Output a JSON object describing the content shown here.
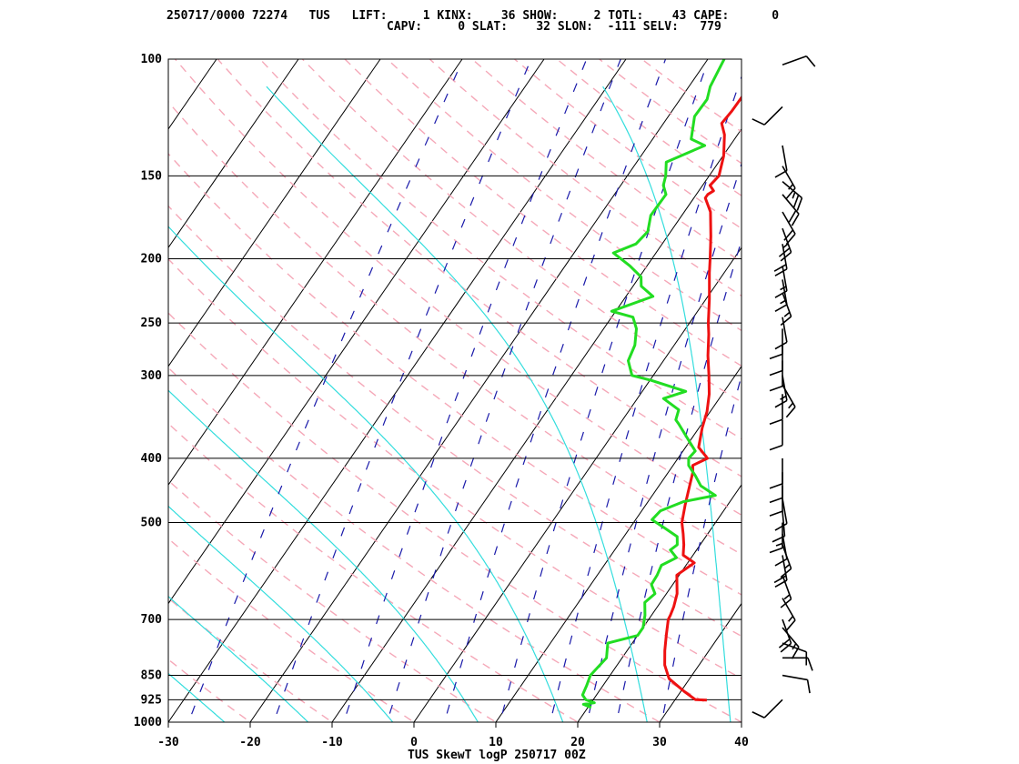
{
  "header": {
    "line1": "250717/0000 72274   TUS   LIFT:     1 KINX:    36 SHOW:     2 TOTL:    43 CAPE:      0",
    "line2": "CAPV:     0 SLAT:    32 SLON:  -111 SELV:   779"
  },
  "chart_data": {
    "type": "skewt",
    "title": "",
    "xlabel": "TUS SkewT logP 250717 00Z",
    "ylabel": "",
    "xlim": [
      -30,
      40
    ],
    "ylim": [
      1000,
      100
    ],
    "pressure_ticks": [
      {
        "p": 100,
        "label": "100"
      },
      {
        "p": 150,
        "label": "150"
      },
      {
        "p": 200,
        "label": "200"
      },
      {
        "p": 250,
        "label": "250"
      },
      {
        "p": 300,
        "label": "300"
      },
      {
        "p": 400,
        "label": "400"
      },
      {
        "p": 500,
        "label": "500"
      },
      {
        "p": 700,
        "label": "700"
      },
      {
        "p": 850,
        "label": "850"
      },
      {
        "p": 925,
        "label": "925"
      },
      {
        "p": 1000,
        "label": "1000"
      }
    ],
    "temp_ticks": [
      {
        "t": -30,
        "label": "-30"
      },
      {
        "t": -20,
        "label": "-20"
      },
      {
        "t": -10,
        "label": "-10"
      },
      {
        "t": 0,
        "label": "0"
      },
      {
        "t": 10,
        "label": "10"
      },
      {
        "t": 20,
        "label": "20"
      },
      {
        "t": 30,
        "label": "30"
      },
      {
        "t": 40,
        "label": "40"
      }
    ],
    "series": [
      {
        "color": "#ee1111",
        "points": [
          [
            926,
            33.9
          ],
          [
            925,
            32.5
          ],
          [
            900,
            30.5
          ],
          [
            860,
            27.5
          ],
          [
            820,
            25.8
          ],
          [
            780,
            24.6
          ],
          [
            740,
            23.5
          ],
          [
            700,
            22.4
          ],
          [
            690,
            22.3
          ],
          [
            670,
            22.0
          ],
          [
            640,
            21.3
          ],
          [
            600,
            19.7
          ],
          [
            575,
            20.8
          ],
          [
            560,
            18.8
          ],
          [
            540,
            18.0
          ],
          [
            520,
            17.0
          ],
          [
            500,
            15.9
          ],
          [
            470,
            14.8
          ],
          [
            450,
            14.1
          ],
          [
            420,
            13.0
          ],
          [
            410,
            12.4
          ],
          [
            400,
            13.6
          ],
          [
            385,
            11.6
          ],
          [
            360,
            10.4
          ],
          [
            340,
            9.6
          ],
          [
            320,
            8.4
          ],
          [
            300,
            6.8
          ],
          [
            280,
            5.0
          ],
          [
            260,
            3.3
          ],
          [
            250,
            2.3
          ],
          [
            230,
            0.4
          ],
          [
            210,
            -1.8
          ],
          [
            200,
            -2.9
          ],
          [
            185,
            -4.7
          ],
          [
            170,
            -6.8
          ],
          [
            162,
            -8.6
          ],
          [
            160,
            -8.6
          ],
          [
            158,
            -8.2
          ],
          [
            155,
            -9.1
          ],
          [
            150,
            -8.8
          ],
          [
            140,
            -9.9
          ],
          [
            130,
            -11.6
          ],
          [
            125,
            -12.9
          ],
          [
            120,
            -12.7
          ],
          [
            110,
            -12.6
          ],
          [
            100,
            -13.0
          ]
        ]
      },
      {
        "color": "#22dd22",
        "points": [
          [
            950,
            20.4
          ],
          [
            940,
            19.2
          ],
          [
            935,
            20.4
          ],
          [
            925,
            19.1
          ],
          [
            910,
            18.3
          ],
          [
            880,
            18.0
          ],
          [
            850,
            17.6
          ],
          [
            800,
            18.1
          ],
          [
            760,
            17.0
          ],
          [
            740,
            20.0
          ],
          [
            720,
            20.0
          ],
          [
            690,
            19.2
          ],
          [
            660,
            18.1
          ],
          [
            640,
            18.6
          ],
          [
            620,
            17.4
          ],
          [
            600,
            17.3
          ],
          [
            580,
            17.0
          ],
          [
            565,
            18.2
          ],
          [
            550,
            16.8
          ],
          [
            540,
            17.2
          ],
          [
            525,
            16.5
          ],
          [
            510,
            14.3
          ],
          [
            495,
            12.0
          ],
          [
            480,
            12.3
          ],
          [
            465,
            14.3
          ],
          [
            455,
            17.7
          ],
          [
            440,
            15.1
          ],
          [
            425,
            13.6
          ],
          [
            410,
            11.9
          ],
          [
            400,
            11.3
          ],
          [
            390,
            11.5
          ],
          [
            380,
            10.3
          ],
          [
            355,
            7.2
          ],
          [
            350,
            6.5
          ],
          [
            338,
            6.0
          ],
          [
            325,
            3.2
          ],
          [
            317,
            5.3
          ],
          [
            305,
            0.1
          ],
          [
            300,
            -2.6
          ],
          [
            285,
            -4.3
          ],
          [
            270,
            -4.8
          ],
          [
            255,
            -6.0
          ],
          [
            245,
            -7.4
          ],
          [
            240,
            -10.5
          ],
          [
            228,
            -6.7
          ],
          [
            220,
            -9.0
          ],
          [
            213,
            -9.8
          ],
          [
            205,
            -12.1
          ],
          [
            196,
            -15.2
          ],
          [
            190,
            -13.2
          ],
          [
            182,
            -12.8
          ],
          [
            172,
            -13.8
          ],
          [
            160,
            -13.7
          ],
          [
            155,
            -14.8
          ],
          [
            150,
            -15.3
          ],
          [
            143,
            -16.4
          ],
          [
            135,
            -13.1
          ],
          [
            132,
            -15.3
          ],
          [
            122,
            -16.8
          ],
          [
            115,
            -16.7
          ],
          [
            110,
            -17.4
          ],
          [
            100,
            -18.0
          ]
        ]
      }
    ],
    "wind_barbs": [
      {
        "p": 925,
        "dir": 225,
        "spd": 10
      },
      {
        "p": 850,
        "dir": 100,
        "spd": 10
      },
      {
        "p": 800,
        "dir": 90,
        "spd": 10
      },
      {
        "p": 760,
        "dir": 110,
        "spd": 10
      },
      {
        "p": 720,
        "dir": 140,
        "spd": 15
      },
      {
        "p": 700,
        "dir": 160,
        "spd": 20
      },
      {
        "p": 650,
        "dir": 150,
        "spd": 15
      },
      {
        "p": 600,
        "dir": 160,
        "spd": 15
      },
      {
        "p": 560,
        "dir": 170,
        "spd": 20
      },
      {
        "p": 540,
        "dir": 160,
        "spd": 15
      },
      {
        "p": 520,
        "dir": 170,
        "spd": 10
      },
      {
        "p": 500,
        "dir": 180,
        "spd": 15
      },
      {
        "p": 480,
        "dir": 175,
        "spd": 10
      },
      {
        "p": 460,
        "dir": 170,
        "spd": 10
      },
      {
        "p": 440,
        "dir": 180,
        "spd": 10
      },
      {
        "p": 420,
        "dir": 180,
        "spd": 10
      },
      {
        "p": 400,
        "dir": 180,
        "spd": 10
      },
      {
        "p": 350,
        "dir": 180,
        "spd": 10
      },
      {
        "p": 320,
        "dir": 180,
        "spd": 10
      },
      {
        "p": 310,
        "dir": 150,
        "spd": 15
      },
      {
        "p": 300,
        "dir": 170,
        "spd": 15
      },
      {
        "p": 285,
        "dir": 180,
        "spd": 10
      },
      {
        "p": 270,
        "dir": 180,
        "spd": 10
      },
      {
        "p": 255,
        "dir": 180,
        "spd": 10
      },
      {
        "p": 245,
        "dir": 170,
        "spd": 10
      },
      {
        "p": 225,
        "dir": 160,
        "spd": 15
      },
      {
        "p": 215,
        "dir": 170,
        "spd": 15
      },
      {
        "p": 205,
        "dir": 170,
        "spd": 15
      },
      {
        "p": 190,
        "dir": 170,
        "spd": 20
      },
      {
        "p": 180,
        "dir": 160,
        "spd": 25
      },
      {
        "p": 170,
        "dir": 150,
        "spd": 20
      },
      {
        "p": 160,
        "dir": 140,
        "spd": 20
      },
      {
        "p": 153,
        "dir": 130,
        "spd": 25
      },
      {
        "p": 145,
        "dir": 150,
        "spd": 15
      },
      {
        "p": 135,
        "dir": 170,
        "spd": 10
      },
      {
        "p": 118,
        "dir": 225,
        "spd": 10
      },
      {
        "p": 102,
        "dir": 70,
        "spd": 10
      }
    ]
  }
}
